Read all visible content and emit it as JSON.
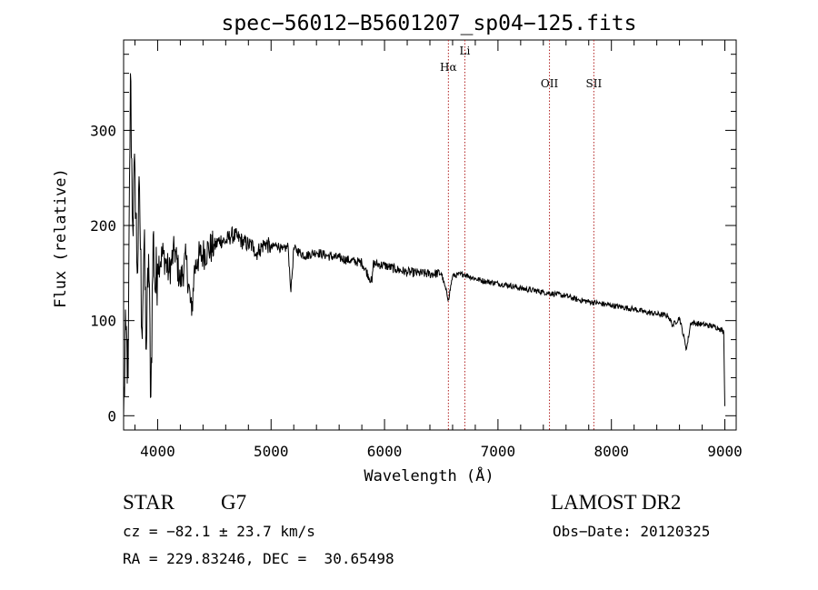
{
  "chart_data": {
    "type": "line",
    "title": "spec−56012−B5601207_sp04−125.fits",
    "xlabel": "Wavelength (Å)",
    "ylabel": "Flux (relative)",
    "xlim": [
      3700,
      9100
    ],
    "ylim": [
      -15,
      395
    ],
    "xticks": [
      4000,
      5000,
      6000,
      7000,
      8000,
      9000
    ],
    "yticks": [
      0,
      100,
      200,
      300
    ],
    "grid": false,
    "series": [
      {
        "x": [
          3700,
          3720,
          3740,
          3760,
          3780,
          3800,
          3820,
          3840,
          3860,
          3880,
          3900,
          3920,
          3940,
          3960,
          3980,
          4000,
          4050,
          4100,
          4150,
          4200,
          4250,
          4300,
          4320,
          4350,
          4400,
          4450,
          4500,
          4550,
          4600,
          4650,
          4700,
          4750,
          4800,
          4850,
          4861,
          4880,
          4900,
          4950,
          5000,
          5050,
          5100,
          5150,
          5175,
          5200,
          5250,
          5300,
          5400,
          5500,
          5600,
          5700,
          5800,
          5890,
          5900,
          6000,
          6100,
          6200,
          6300,
          6400,
          6500,
          6563,
          6600,
          6700,
          6800,
          6900,
          7000,
          7100,
          7200,
          7300,
          7400,
          7500,
          7600,
          7700,
          7800,
          7900,
          8000,
          8100,
          8200,
          8300,
          8400,
          8500,
          8540,
          8600,
          8662,
          8700,
          8800,
          8900,
          8950,
          8990,
          9000
        ],
        "y": [
          0,
          90,
          40,
          360,
          200,
          260,
          150,
          240,
          90,
          180,
          70,
          170,
          20,
          190,
          130,
          160,
          170,
          150,
          175,
          140,
          165,
          105,
          150,
          165,
          170,
          175,
          178,
          185,
          183,
          190,
          188,
          183,
          180,
          178,
          170,
          172,
          175,
          182,
          176,
          180,
          174,
          178,
          130,
          176,
          172,
          168,
          172,
          168,
          166,
          163,
          161,
          140,
          160,
          158,
          154,
          151,
          150,
          149,
          150,
          122,
          147,
          149,
          144,
          141,
          139,
          137,
          134,
          132,
          130,
          128,
          126,
          122,
          120,
          118,
          116,
          114,
          112,
          109,
          107,
          105,
          95,
          103,
          70,
          98,
          96,
          94,
          92,
          88,
          10
        ]
      }
    ],
    "lines": [
      {
        "label": "Hα",
        "x": 6563
      },
      {
        "label": "Li",
        "x": 6708
      },
      {
        "label": "OII",
        "x": 7454
      },
      {
        "label": "SII",
        "x": 7845
      }
    ],
    "annotations": {
      "class": "STAR",
      "subclass": "G7",
      "survey": "LAMOST DR2",
      "cz": "cz = −82.1 ± 23.7 km/s",
      "obs_date": "Obs−Date: 20120325",
      "radec": "RA = 229.83246, DEC =  30.65498"
    },
    "colors": {
      "spectrum": "#000000",
      "marker_lines": "#b22222",
      "background": "#ffffff"
    }
  }
}
